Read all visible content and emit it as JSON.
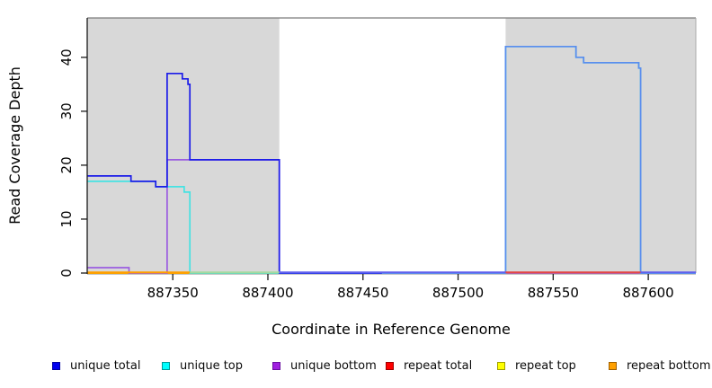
{
  "figure_title": "",
  "chart_data": {
    "type": "line",
    "title": "",
    "xlabel": "Coordinate in Reference Genome",
    "ylabel": "Read Coverage Depth",
    "xlim": [
      887305,
      887625
    ],
    "ylim": [
      0,
      47.3
    ],
    "grid": false,
    "legend_position": "bottom",
    "x_ticks": [
      {
        "value": 887350,
        "label": "887350"
      },
      {
        "value": 887400,
        "label": "887400"
      },
      {
        "value": 887450,
        "label": "887450"
      },
      {
        "value": 887500,
        "label": "887500"
      },
      {
        "value": 887550,
        "label": "887550"
      },
      {
        "value": 887600,
        "label": "887600"
      }
    ],
    "y_ticks": [
      {
        "value": 0,
        "label": "0"
      },
      {
        "value": 10,
        "label": "10"
      },
      {
        "value": 20,
        "label": "20"
      },
      {
        "value": 30,
        "label": "30"
      },
      {
        "value": 40,
        "label": "40"
      }
    ],
    "background_regions": [
      {
        "from": 887305,
        "to": 887406,
        "color": "#d8d8d8"
      },
      {
        "from": 887525,
        "to": 887625,
        "color": "#d8d8d8"
      }
    ],
    "border_color": "#7c7c7c",
    "axis_color": "#1a1a1a",
    "series": [
      {
        "name": "repeat total",
        "color": "#e02020",
        "points": [
          [
            887305,
            0
          ],
          [
            887625,
            0
          ]
        ]
      },
      {
        "name": "repeat top",
        "color": "#f0e400",
        "points": [
          [
            887305,
            0
          ],
          [
            887625,
            0
          ]
        ]
      },
      {
        "name": "repeat bottom",
        "color": "#ff9f00",
        "points": [
          [
            887305,
            0
          ],
          [
            887625,
            0
          ]
        ]
      },
      {
        "name": "unique bottom",
        "color": "#9b5ce0",
        "points": [
          [
            887305,
            1
          ],
          [
            887327,
            1
          ],
          [
            887327,
            0
          ],
          [
            887347,
            0
          ],
          [
            887347,
            21
          ],
          [
            887406,
            21
          ],
          [
            887406,
            0
          ],
          [
            887625,
            0
          ]
        ]
      },
      {
        "name": "unique top",
        "color": "#45e2e2",
        "points": [
          [
            887305,
            17
          ],
          [
            887341,
            17
          ],
          [
            887341,
            16
          ],
          [
            887356,
            16
          ],
          [
            887356,
            15
          ],
          [
            887359,
            15
          ],
          [
            887359,
            0
          ],
          [
            887525,
            0
          ],
          [
            887525,
            42
          ],
          [
            887562,
            42
          ],
          [
            887562,
            40
          ],
          [
            887566,
            40
          ],
          [
            887566,
            39
          ],
          [
            887595,
            39
          ],
          [
            887595,
            38
          ],
          [
            887596,
            38
          ],
          [
            887596,
            0
          ],
          [
            887625,
            0
          ]
        ]
      },
      {
        "name": "unique total",
        "segments": [
          {
            "color": "#1c1ce8",
            "points": [
              [
                887305,
                18
              ],
              [
                887328,
                18
              ],
              [
                887328,
                17
              ],
              [
                887341,
                17
              ],
              [
                887341,
                16
              ],
              [
                887347,
                16
              ],
              [
                887347,
                37
              ],
              [
                887355,
                37
              ],
              [
                887355,
                36
              ],
              [
                887358,
                36
              ],
              [
                887358,
                35
              ],
              [
                887359,
                35
              ],
              [
                887359,
                21
              ],
              [
                887406,
                21
              ],
              [
                887406,
                0
              ],
              [
                887460,
                0
              ]
            ]
          },
          {
            "color": "#5b8dee",
            "points": [
              [
                887460,
                0
              ],
              [
                887525,
                0
              ],
              [
                887525,
                42
              ],
              [
                887562,
                42
              ],
              [
                887562,
                40
              ],
              [
                887566,
                40
              ],
              [
                887566,
                39
              ],
              [
                887595,
                39
              ],
              [
                887595,
                38
              ],
              [
                887596,
                38
              ],
              [
                887596,
                0
              ],
              [
                887625,
                0
              ]
            ]
          }
        ]
      }
    ],
    "baseline_zero_line_segments": [
      {
        "from": 887305,
        "to": 887359,
        "color": "#ff9f00"
      },
      {
        "from": 887359,
        "to": 887406,
        "color": "#a6d9a0"
      },
      {
        "from": 887406,
        "to": 887525,
        "color": "#6060ee"
      },
      {
        "from": 887525,
        "to": 887596,
        "color": "#e34545"
      },
      {
        "from": 887596,
        "to": 887625,
        "color": "#6060ee"
      }
    ],
    "legend": [
      {
        "label": "unique total",
        "fill": "#0000f0",
        "border": "#0000a0",
        "x": 58
      },
      {
        "label": "unique top",
        "fill": "#00ffff",
        "border": "#009a9a",
        "x": 180
      },
      {
        "label": "unique bottom",
        "fill": "#a020e0",
        "border": "#6a10a0",
        "x": 303
      },
      {
        "label": "repeat total",
        "fill": "#ff0000",
        "border": "#a00000",
        "x": 429
      },
      {
        "label": "repeat top",
        "fill": "#ffff00",
        "border": "#a0a000",
        "x": 553
      },
      {
        "label": "repeat bottom",
        "fill": "#ffa000",
        "border": "#a06000",
        "x": 677
      }
    ]
  }
}
